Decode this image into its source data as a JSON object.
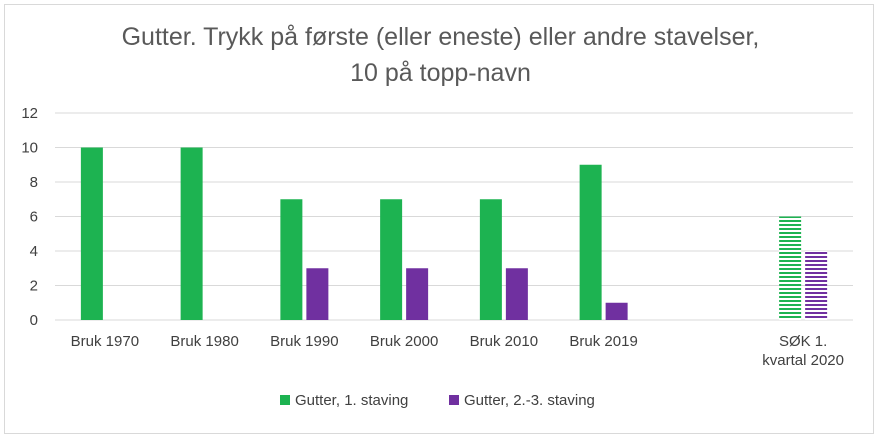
{
  "chart_data": {
    "type": "bar",
    "title": [
      "Gutter. Trykk på første (eller eneste) eller andre stavelser,",
      "10 på topp-navn"
    ],
    "xlabel": "",
    "ylabel": "",
    "ylim": [
      0,
      12
    ],
    "yticks": [
      "0",
      "2",
      "4",
      "6",
      "8",
      "10",
      "12"
    ],
    "grid": true,
    "legend_position": "bottom",
    "categories": [
      [
        "Bruk 1970"
      ],
      [
        "Bruk 1980"
      ],
      [
        "Bruk 1990"
      ],
      [
        "Bruk 2000"
      ],
      [
        "Bruk 2010"
      ],
      [
        "Bruk 2019"
      ],
      [
        ""
      ],
      [
        "SØK 1.",
        "kvartal 2020"
      ]
    ],
    "series": [
      {
        "name": "Gutter, 1. staving",
        "color": "#1db351",
        "values": [
          10,
          10,
          7,
          7,
          7,
          9,
          null,
          6
        ],
        "striped": [
          false,
          false,
          false,
          false,
          false,
          false,
          false,
          true
        ]
      },
      {
        "name": "Gutter, 2.-3. staving",
        "color": "#7030a0",
        "values": [
          0,
          0,
          3,
          3,
          3,
          1,
          null,
          4
        ],
        "striped": [
          false,
          false,
          false,
          false,
          false,
          false,
          false,
          true
        ]
      }
    ]
  }
}
